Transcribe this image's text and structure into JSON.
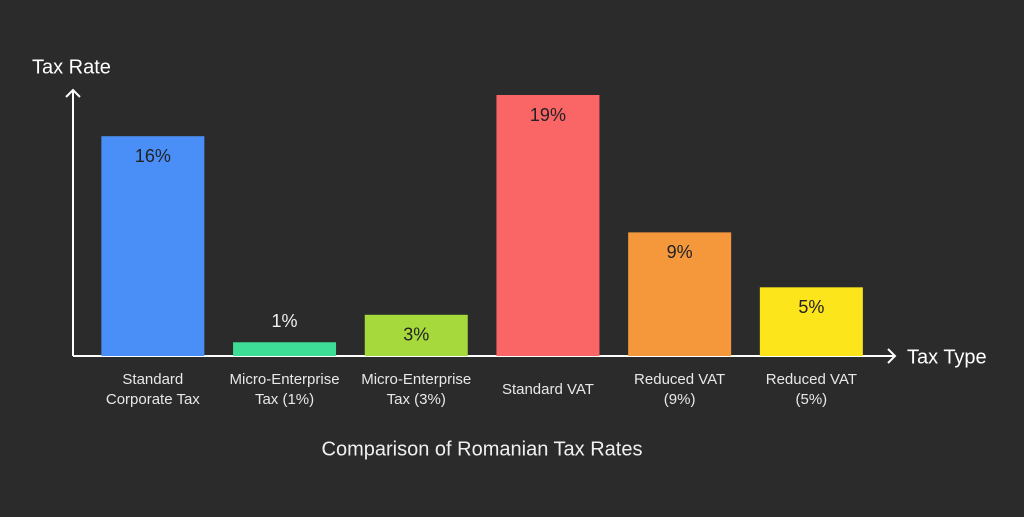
{
  "chart_data": {
    "type": "bar",
    "title": "Comparison of Romanian Tax Rates",
    "y_label": "Tax Rate",
    "x_label": "Tax Type",
    "categories": [
      "Standard\nCorporate Tax",
      "Micro-Enterprise\nTax (1%)",
      "Micro-Enterprise\nTax (3%)",
      "Standard VAT",
      "Reduced VAT\n(9%)",
      "Reduced VAT\n(5%)"
    ],
    "values": [
      16,
      1,
      3,
      19,
      9,
      5
    ],
    "value_labels": [
      "16%",
      "1%",
      "3%",
      "19%",
      "9%",
      "5%"
    ],
    "colors": [
      "#4a8ff7",
      "#3ddc97",
      "#a6d93c",
      "#fa6565",
      "#f5983c",
      "#fde51c"
    ],
    "ylim": [
      0,
      19
    ]
  }
}
